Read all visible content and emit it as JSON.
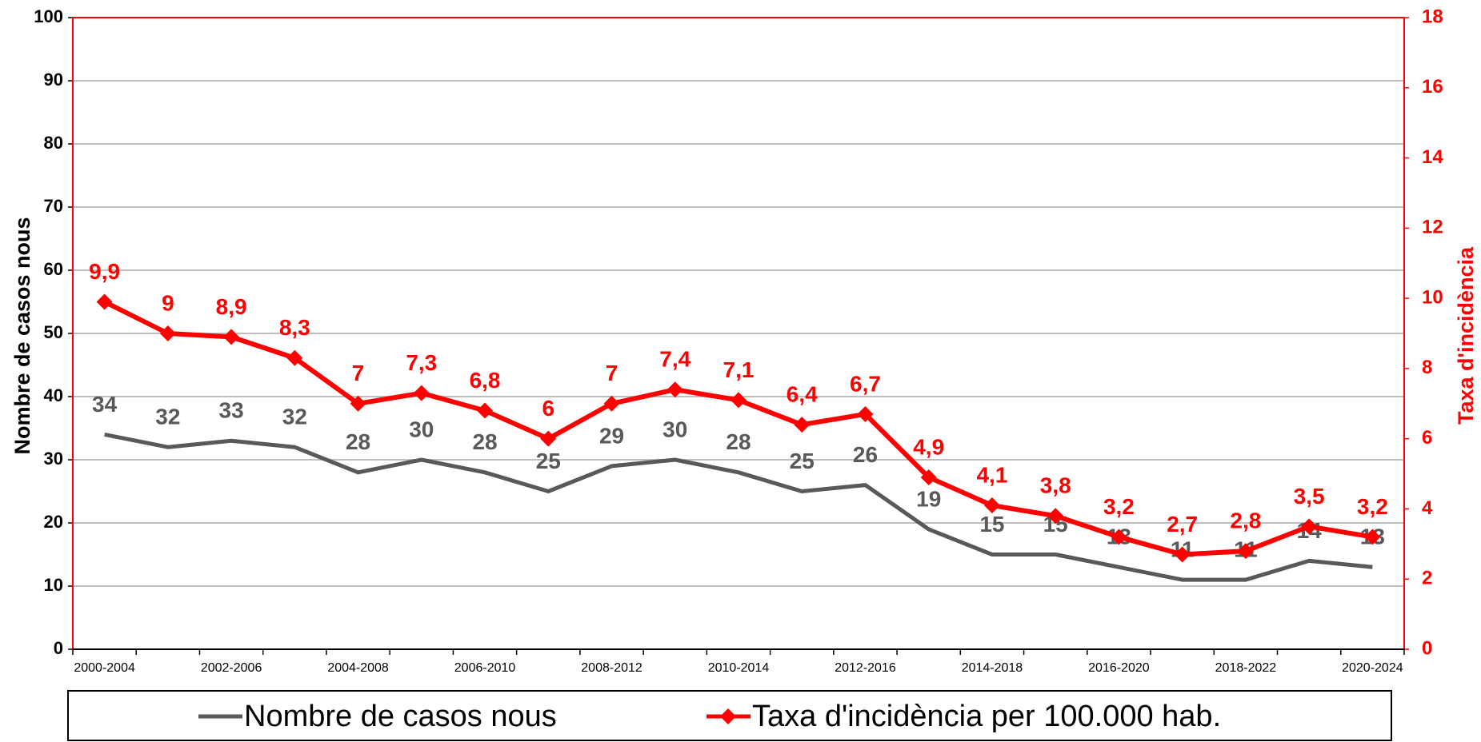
{
  "chart_data": {
    "type": "line",
    "categories": [
      "2000-2004",
      null,
      "2002-2006",
      null,
      "2004-2008",
      null,
      "2006-2010",
      null,
      "2008-2012",
      null,
      "2010-2014",
      null,
      "2012-2016",
      null,
      "2014-2018",
      null,
      "2016-2020",
      null,
      "2018-2022",
      null,
      "2020-2024"
    ],
    "y_label": "Nombre de casos nous",
    "y2_label": "Taxa d'incidència",
    "series": [
      {
        "name": "Nombre de casos nous",
        "color": "#595959",
        "values": [
          34,
          32,
          33,
          32,
          28,
          30,
          28,
          25,
          29,
          30,
          28,
          25,
          26,
          19,
          15,
          15,
          13,
          11,
          11,
          14,
          13
        ]
      },
      {
        "name": "Taxa d'incidència per 100.000 hab.",
        "color": "#ff0000",
        "axis": "y2",
        "values": [
          9.9,
          9,
          8.9,
          8.3,
          7,
          7.3,
          6.8,
          6,
          7,
          7.4,
          7.1,
          6.4,
          6.7,
          4.9,
          4.1,
          3.8,
          3.2,
          2.7,
          2.8,
          3.5,
          3.2
        ],
        "value_labels": [
          "9,9",
          "9",
          "8,9",
          "8,3",
          "7",
          "7,3",
          "6,8",
          "6",
          "7",
          "7,4",
          "7,1",
          "6,4",
          "6,7",
          "4,9",
          "4,1",
          "3,8",
          "3,2",
          "2,7",
          "2,8",
          "3,5",
          "3,2"
        ]
      }
    ],
    "ylim": [
      0,
      100
    ],
    "yticks": [
      0,
      10,
      20,
      30,
      40,
      50,
      60,
      70,
      80,
      90,
      100
    ],
    "y2lim": [
      0,
      18
    ],
    "y2ticks": [
      0,
      2,
      4,
      6,
      8,
      10,
      12,
      14,
      16,
      18
    ],
    "grid": true,
    "legend": "bottom"
  }
}
